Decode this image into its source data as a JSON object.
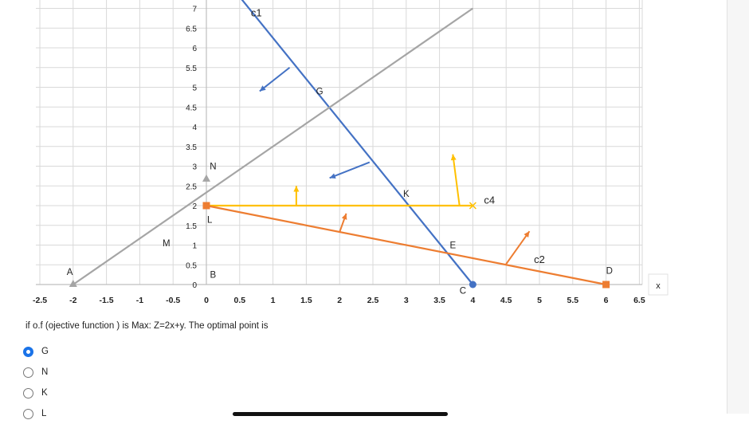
{
  "chart_data": {
    "type": "line",
    "x_ticks": [
      "-2.5",
      "-2",
      "-1.5",
      "-1",
      "-0.5",
      "0",
      "0.5",
      "1",
      "1.5",
      "2",
      "2.5",
      "3",
      "3.5",
      "4",
      "4.5",
      "5",
      "5.5",
      "6",
      "6.5"
    ],
    "y_ticks": [
      "0",
      "0.5",
      "1",
      "1.5",
      "2",
      "2.5",
      "3",
      "3.5",
      "4",
      "4.5",
      "5",
      "5.5",
      "6",
      "6.5",
      "7"
    ],
    "x_axis_label": "x",
    "xlim": [
      -2.5,
      6.5
    ],
    "ylim": [
      0,
      7
    ],
    "grid": true,
    "lines": [
      {
        "name": "c1",
        "color": "#4472c4",
        "points": [
          [
            0.4,
            7.5
          ],
          [
            4,
            0
          ]
        ]
      },
      {
        "name": "",
        "color": "#a5a5a5",
        "points": [
          [
            -2,
            0
          ],
          [
            4,
            7
          ]
        ]
      },
      {
        "name": "c4",
        "color": "#ffc000",
        "points": [
          [
            0,
            2
          ],
          [
            4,
            2
          ]
        ]
      },
      {
        "name": "c2",
        "color": "#ed7d31",
        "points": [
          [
            0,
            2
          ],
          [
            6,
            0
          ]
        ]
      }
    ],
    "arrows": [
      {
        "color": "#4472c4",
        "from": [
          1.25,
          5.5
        ],
        "to": [
          0.8,
          4.9
        ]
      },
      {
        "color": "#4472c4",
        "from": [
          2.45,
          3.1
        ],
        "to": [
          1.85,
          2.7
        ]
      },
      {
        "color": "#ffc000",
        "from": [
          1.35,
          2
        ],
        "to": [
          1.35,
          2.5
        ]
      },
      {
        "color": "#ffc000",
        "from": [
          3.8,
          2
        ],
        "to": [
          3.7,
          3.3
        ]
      },
      {
        "color": "#ed7d31",
        "from": [
          2,
          1.33
        ],
        "to": [
          2.1,
          1.8
        ]
      },
      {
        "color": "#ed7d31",
        "from": [
          4.5,
          0.52
        ],
        "to": [
          4.85,
          1.35
        ]
      }
    ],
    "points": [
      {
        "label": "A",
        "x": -2,
        "y": 0,
        "color": "#a5a5a5",
        "marker": "triangle",
        "lx": -2.05,
        "ly": 0.32
      },
      {
        "label": "N",
        "x": 0,
        "y": 2.67,
        "color": "#a5a5a5",
        "marker": "triangle",
        "lx": 0.1,
        "ly": 3.0
      },
      {
        "label": "L",
        "x": 0,
        "y": 2,
        "color": "#ed7d31",
        "marker": "square",
        "lx": 0.05,
        "ly": 1.65
      },
      {
        "label": "M",
        "x": null,
        "y": null,
        "color": "",
        "marker": "",
        "lx": -0.6,
        "ly": 1.05
      },
      {
        "label": "B",
        "x": 0,
        "y": 0,
        "color": "",
        "marker": "",
        "lx": 0.1,
        "ly": 0.25
      },
      {
        "label": "G",
        "x": 1.7,
        "y": 4.6,
        "color": "",
        "marker": "",
        "lx": 1.7,
        "ly": 4.9
      },
      {
        "label": "K",
        "x": 3,
        "y": 2,
        "color": "",
        "marker": "",
        "lx": 3.0,
        "ly": 2.3
      },
      {
        "label": "E",
        "x": 3.6,
        "y": 0.8,
        "color": "",
        "marker": "",
        "lx": 3.7,
        "ly": 1.0
      },
      {
        "label": "C",
        "x": 4,
        "y": 0,
        "color": "#4472c4",
        "marker": "circle",
        "lx": 3.85,
        "ly": -0.15
      },
      {
        "label": "D",
        "x": 6,
        "y": 0,
        "color": "#ed7d31",
        "marker": "square",
        "lx": 6.05,
        "ly": 0.35
      }
    ],
    "line_labels": [
      {
        "text": "c1",
        "x": 0.75,
        "y": 6.8
      },
      {
        "text": "c4",
        "x": 4.25,
        "y": 2.05
      },
      {
        "text": "c2",
        "x": 5.0,
        "y": 0.55
      }
    ]
  },
  "question": {
    "text": "if o.f (ojective function ) is Max: Z=2x+y. The optimal point is",
    "options": [
      {
        "label": "G",
        "selected": true
      },
      {
        "label": "N",
        "selected": false
      },
      {
        "label": "K",
        "selected": false
      },
      {
        "label": "L",
        "selected": false
      }
    ]
  }
}
